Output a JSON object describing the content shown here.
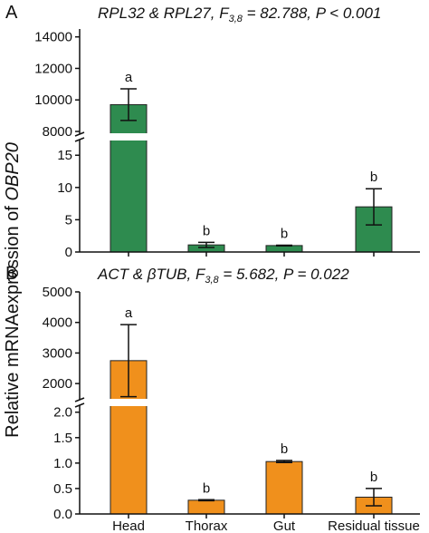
{
  "figure": {
    "ylabel_prefix": "Relative mRNAexpression of ",
    "ylabel_gene": "OBP20"
  },
  "colors": {
    "A": "#2e8b4f",
    "B": "#f0901c"
  },
  "chart_data": [
    {
      "type": "bar",
      "panel_letter": "A",
      "title_parts": [
        "RPL32",
        " & ",
        "RPL27",
        ", F",
        "3,8",
        " = 82.788, ",
        "P",
        " < 0.001"
      ],
      "categories": [
        "Head",
        "Thorax",
        "Gut",
        "Residual tissue"
      ],
      "values": [
        9700,
        1.1,
        1.0,
        7.0
      ],
      "errors": [
        1000,
        0.4,
        0.05,
        2.8
      ],
      "letters": [
        "a",
        "b",
        "b",
        "b"
      ],
      "broken_axis": true,
      "lower_ylim": [
        0,
        17
      ],
      "lower_ticks": [
        "0",
        "5",
        "10",
        "15"
      ],
      "upper_ylim": [
        8000,
        14500
      ],
      "upper_ticks": [
        "8000",
        "10000",
        "12000",
        "14000"
      ],
      "show_xticklabels": false
    },
    {
      "type": "bar",
      "panel_letter": "B",
      "title_parts": [
        "ACT",
        " & ",
        "βTUB",
        ", F",
        "3,8",
        " = 5.682, ",
        "P",
        " = 0.022"
      ],
      "categories": [
        "Head",
        "Thorax",
        "Gut",
        "Residual tissue"
      ],
      "values": [
        2750,
        0.27,
        1.03,
        0.33
      ],
      "errors": [
        1180,
        0.01,
        0.02,
        0.17
      ],
      "letters": [
        "a",
        "b",
        "b",
        "b"
      ],
      "broken_axis": true,
      "lower_ylim": [
        0,
        2.12
      ],
      "lower_ticks": [
        "0.0",
        "0.5",
        "1.0",
        "1.5",
        "2.0"
      ],
      "upper_ylim": [
        1500,
        5000
      ],
      "upper_ticks": [
        "2000",
        "3000",
        "4000",
        "5000"
      ],
      "show_xticklabels": true
    }
  ]
}
